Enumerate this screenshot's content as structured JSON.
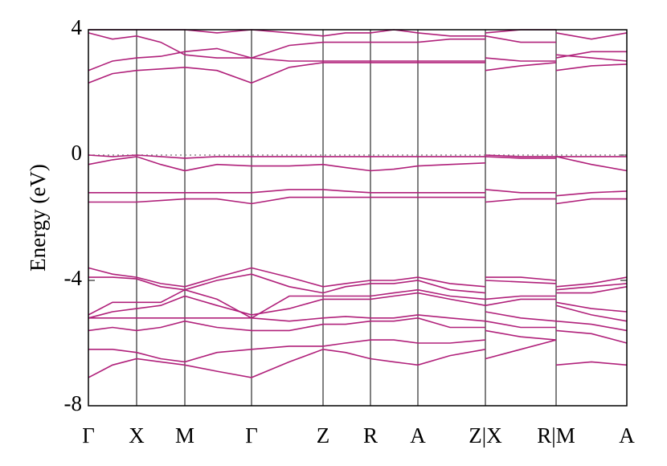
{
  "chart_data": {
    "type": "line",
    "ylabel": "Energy (eV)",
    "ylim": [
      -8,
      4
    ],
    "yticks": [
      -8,
      -4,
      0,
      4
    ],
    "xlim": [
      0,
      6.7
    ],
    "xticks": [
      {
        "value": 0,
        "label": "Γ"
      },
      {
        "value": 0.6,
        "label": "X"
      },
      {
        "value": 1.2,
        "label": "M"
      },
      {
        "value": 2.03,
        "label": "Γ"
      },
      {
        "value": 2.92,
        "label": "Z"
      },
      {
        "value": 3.51,
        "label": "R"
      },
      {
        "value": 4.1,
        "label": "A"
      },
      {
        "value": 4.94,
        "label": "Z|X"
      },
      {
        "value": 5.82,
        "label": "R|M"
      },
      {
        "value": 6.7,
        "label": "A"
      }
    ],
    "reference_line": 0,
    "x": [
      0,
      0.3,
      0.6,
      0.9,
      1.2,
      1.6,
      2.03,
      2.5,
      2.92,
      3.2,
      3.51,
      3.8,
      4.1,
      4.5,
      4.94,
      4.94,
      4.94,
      5.38,
      5.82,
      5.82,
      5.82,
      6.26,
      6.7
    ],
    "series": [
      {
        "color": "#b0207a",
        "values": [
          2.3,
          2.6,
          2.7,
          2.75,
          2.8,
          2.7,
          2.3,
          2.8,
          2.95,
          2.95,
          2.95,
          2.95,
          2.95,
          2.95,
          2.95,
          null,
          2.7,
          2.85,
          2.95,
          null,
          2.7,
          2.85,
          2.9
        ]
      },
      {
        "color": "#b0207a",
        "values": [
          2.7,
          3.0,
          3.1,
          3.15,
          3.3,
          3.4,
          3.1,
          3.0,
          3.0,
          3.0,
          3.0,
          3.0,
          3.0,
          3.0,
          3.0,
          null,
          3.1,
          3.0,
          3.0,
          null,
          3.2,
          3.1,
          3.0
        ]
      },
      {
        "color": "#b0207a",
        "values": [
          3.9,
          3.7,
          3.8,
          3.6,
          3.2,
          3.1,
          3.1,
          3.5,
          3.6,
          3.6,
          3.6,
          3.6,
          3.6,
          3.7,
          3.7,
          null,
          3.8,
          3.6,
          3.6,
          null,
          3.1,
          3.3,
          3.3
        ]
      },
      {
        "color": "#b0207a",
        "values": [
          4.0,
          4.0,
          4.0,
          4.0,
          4.0,
          3.9,
          4.0,
          3.9,
          3.8,
          3.9,
          3.9,
          4.0,
          3.9,
          3.8,
          3.8,
          null,
          3.9,
          4.0,
          4.0,
          null,
          3.9,
          3.7,
          3.9
        ]
      },
      {
        "color": "#b0207a",
        "values": [
          0,
          -0.05,
          0,
          -0.05,
          -0.1,
          -0.05,
          -0.05,
          -0.05,
          -0.05,
          -0.05,
          -0.05,
          -0.05,
          -0.05,
          -0.05,
          -0.05,
          null,
          0,
          -0.05,
          -0.05,
          null,
          -0.05,
          -0.05,
          -0.05
        ]
      },
      {
        "color": "#b0207a",
        "values": [
          -0.3,
          -0.15,
          -0.05,
          -0.3,
          -0.5,
          -0.3,
          -0.35,
          -0.35,
          -0.3,
          -0.4,
          -0.5,
          -0.45,
          -0.35,
          -0.3,
          -0.25,
          null,
          -0.05,
          -0.1,
          -0.1,
          null,
          -0.05,
          -0.3,
          -0.5
        ]
      },
      {
        "color": "#b0207a",
        "values": [
          -1.2,
          -1.2,
          -1.2,
          -1.2,
          -1.2,
          -1.2,
          -1.2,
          -1.1,
          -1.1,
          -1.15,
          -1.2,
          -1.2,
          -1.2,
          -1.2,
          -1.2,
          null,
          -1.1,
          -1.2,
          -1.2,
          null,
          -1.3,
          -1.2,
          -1.15
        ]
      },
      {
        "color": "#b0207a",
        "values": [
          -1.5,
          -1.5,
          -1.5,
          -1.45,
          -1.4,
          -1.4,
          -1.55,
          -1.35,
          -1.35,
          -1.35,
          -1.35,
          -1.35,
          -1.35,
          -1.35,
          -1.35,
          null,
          -1.5,
          -1.4,
          -1.4,
          null,
          -1.55,
          -1.4,
          -1.4
        ]
      },
      {
        "color": "#b0207a",
        "values": [
          -3.6,
          -3.8,
          -3.9,
          -4.1,
          -4.2,
          -3.9,
          -3.6,
          -3.9,
          -4.2,
          -4.1,
          -4.0,
          -4.0,
          -3.9,
          -4.1,
          -4.2,
          null,
          -3.9,
          -3.9,
          -4.0,
          null,
          -4.2,
          -4.1,
          -3.9
        ]
      },
      {
        "color": "#b0207a",
        "values": [
          -3.9,
          -3.9,
          -3.95,
          -4.2,
          -4.3,
          -4.0,
          -3.8,
          -4.2,
          -4.4,
          -4.2,
          -4.1,
          -4.1,
          -4.0,
          -4.3,
          -4.4,
          null,
          -4.0,
          -4.05,
          -4.1,
          null,
          -4.3,
          -4.2,
          -4.1
        ]
      },
      {
        "color": "#b0207a",
        "values": [
          -5.1,
          -4.7,
          -4.7,
          -4.7,
          -4.3,
          -4.6,
          -5.2,
          -4.5,
          -4.5,
          -4.5,
          -4.5,
          -4.4,
          -4.3,
          -4.5,
          -4.6,
          null,
          -4.6,
          -4.5,
          -4.5,
          null,
          -4.4,
          -4.4,
          -4.2
        ]
      },
      {
        "color": "#b0207a",
        "values": [
          -5.2,
          -5.0,
          -4.9,
          -4.8,
          -4.5,
          -4.8,
          -5.1,
          -4.9,
          -4.6,
          -4.6,
          -4.6,
          -4.5,
          -4.4,
          -4.6,
          -4.8,
          null,
          -4.8,
          -4.6,
          -4.6,
          null,
          -4.7,
          -4.9,
          -5.0
        ]
      },
      {
        "color": "#b0207a",
        "values": [
          -5.2,
          -5.2,
          -5.2,
          -5.2,
          -5.2,
          -5.2,
          -5.2,
          -5.3,
          -5.2,
          -5.15,
          -5.2,
          -5.2,
          -5.1,
          -5.2,
          -5.3,
          null,
          -5.0,
          -5.2,
          -5.3,
          null,
          -4.8,
          -5.1,
          -5.3
        ]
      },
      {
        "color": "#b0207a",
        "values": [
          -5.6,
          -5.5,
          -5.6,
          -5.5,
          -5.3,
          -5.5,
          -5.6,
          -5.6,
          -5.4,
          -5.4,
          -5.3,
          -5.3,
          -5.2,
          -5.5,
          -5.5,
          null,
          -5.3,
          -5.5,
          -5.5,
          null,
          -5.3,
          -5.4,
          -5.6
        ]
      },
      {
        "color": "#b0207a",
        "values": [
          -6.2,
          -6.2,
          -6.3,
          -6.5,
          -6.6,
          -6.3,
          -6.2,
          -6.1,
          -6.1,
          -6.0,
          -5.9,
          -5.9,
          -6.0,
          -6.0,
          -5.9,
          null,
          -5.6,
          -5.8,
          -5.9,
          null,
          -5.6,
          -5.7,
          -6.0
        ]
      },
      {
        "color": "#b0207a",
        "values": [
          -7.1,
          -6.7,
          -6.5,
          -6.6,
          -6.7,
          -6.9,
          -7.1,
          -6.6,
          -6.2,
          -6.3,
          -6.5,
          -6.6,
          -6.7,
          -6.4,
          -6.2,
          null,
          -6.5,
          -6.2,
          -5.9,
          null,
          -6.7,
          -6.6,
          -6.7
        ]
      }
    ]
  }
}
